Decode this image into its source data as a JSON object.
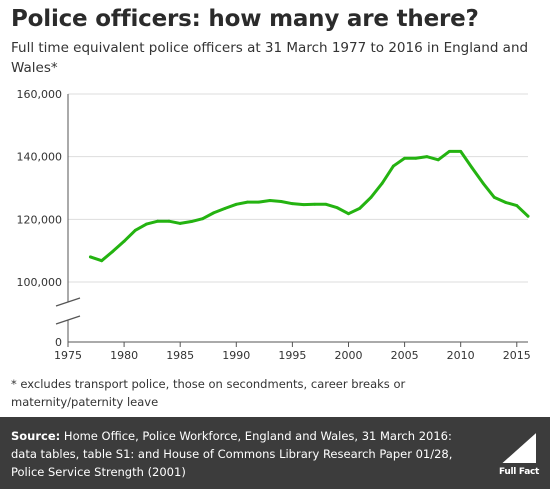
{
  "header": {
    "title": "Police officers: how many are there?",
    "subtitle": "Full time equivalent police officers at 31 March 1977 to 2016 in England and Wales*"
  },
  "footnote": "* excludes transport police, those on secondments, career breaks or maternity/paternity leave",
  "source": {
    "label": "Source:",
    "text": " Home Office, Police Workforce, England and Wales, 31 March 2016: data tables, table S1: and House of Commons Library Research Paper 01/28, Police Service Strength (2001)"
  },
  "logo": {
    "text": "Full Fact"
  },
  "colors": {
    "line": "#24b311",
    "axis": "#555555",
    "grid": "#dddddd",
    "footer": "#3c3c3c"
  },
  "chart_data": {
    "type": "line",
    "title": "Police officers: how many are there?",
    "xlabel": "",
    "ylabel": "",
    "xlim": [
      1975,
      2016
    ],
    "x_ticks": [
      "1975",
      "1980",
      "1985",
      "1990",
      "1995",
      "2000",
      "2005",
      "2010",
      "2015"
    ],
    "y_ticks": [
      "0",
      "100,000",
      "120,000",
      "140,000",
      "160,000"
    ],
    "y_axis_break": "between 0 and 100,000",
    "grid": "horizontal",
    "series": [
      {
        "x": [
          1977,
          1978,
          1979,
          1980,
          1981,
          1982,
          1983,
          1984,
          1985,
          1986,
          1987,
          1988,
          1989,
          1990,
          1991,
          1992,
          1993,
          1994,
          1995,
          1996,
          1997,
          1998,
          1999,
          2000,
          2001,
          2002,
          2003,
          2004,
          2005,
          2006,
          2007,
          2008,
          2009,
          2010,
          2011,
          2012,
          2013,
          2014,
          2015,
          2016
        ],
        "values": [
          108000,
          106800,
          109800,
          113000,
          116500,
          118500,
          119400,
          119400,
          118700,
          119300,
          120200,
          122100,
          123500,
          124800,
          125500,
          125500,
          126000,
          125700,
          125000,
          124700,
          124800,
          124800,
          123700,
          121800,
          123500,
          127000,
          131500,
          137000,
          139500,
          139500,
          140000,
          139000,
          141700,
          141700,
          136500,
          131500,
          127000,
          125400,
          124400,
          121000
        ]
      }
    ]
  }
}
